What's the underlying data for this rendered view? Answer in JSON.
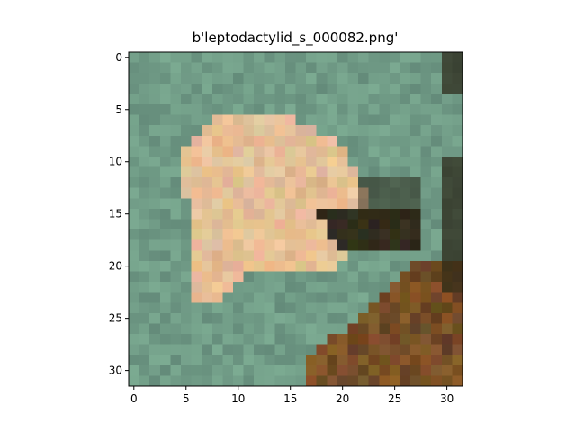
{
  "figure": {
    "title": "b'leptodactylid_s_000082.png'",
    "image_size": 32
  },
  "axes": {
    "x_ticks": [
      "0",
      "5",
      "10",
      "15",
      "20",
      "25",
      "30"
    ],
    "y_ticks": [
      "0",
      "5",
      "10",
      "15",
      "20",
      "25",
      "30"
    ]
  },
  "image": {
    "description_colors": {
      "background": "#6f9a86",
      "frog": "#e4b88e",
      "dark": "#2b2312",
      "brown": "#8a5a2a"
    }
  }
}
